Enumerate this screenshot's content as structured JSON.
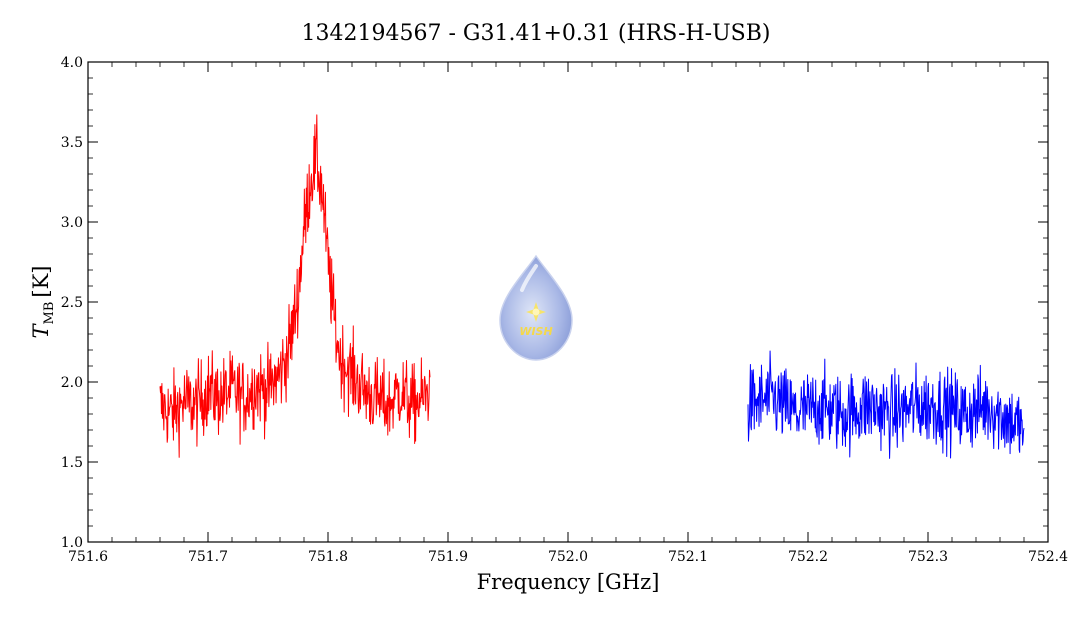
{
  "chart_data": {
    "type": "line",
    "title": "1342194567 - G31.41+0.31 (HRS-H-USB)",
    "xlabel": "Frequency [GHz]",
    "ylabel_main": "T",
    "ylabel_sub": "MB",
    "ylabel_unit": "[K]",
    "xlim": [
      751.6,
      752.4
    ],
    "ylim": [
      1.0,
      4.0
    ],
    "xticks": [
      751.6,
      751.7,
      751.8,
      751.9,
      752.0,
      752.1,
      752.2,
      752.3,
      752.4
    ],
    "xtick_labels": [
      "751.6",
      "751.7",
      "751.8",
      "751.9",
      "752.0",
      "752.1",
      "752.2",
      "752.3",
      "752.4"
    ],
    "yticks": [
      1.0,
      1.5,
      2.0,
      2.5,
      3.0,
      3.5,
      4.0
    ],
    "ytick_labels": [
      "1.0",
      "1.5",
      "2.0",
      "2.5",
      "3.0",
      "3.5",
      "4.0"
    ],
    "grid": false,
    "logo_text": "WISH",
    "series": [
      {
        "color": "#ff0000",
        "x": [
          751.66,
          751.67,
          751.68,
          751.69,
          751.7,
          751.71,
          751.72,
          751.73,
          751.74,
          751.75,
          751.76,
          751.765,
          751.77,
          751.775,
          751.78,
          751.785,
          751.79,
          751.795,
          751.8,
          751.805,
          751.81,
          751.82,
          751.83,
          751.84,
          751.85,
          751.86,
          751.87,
          751.88,
          751.885
        ],
        "y": [
          1.85,
          1.8,
          1.88,
          1.85,
          1.95,
          1.9,
          1.95,
          1.9,
          1.98,
          1.95,
          2.05,
          2.15,
          2.3,
          2.55,
          2.95,
          3.25,
          3.4,
          3.2,
          2.75,
          2.4,
          2.15,
          2.05,
          1.95,
          1.9,
          1.85,
          1.95,
          1.85,
          1.9,
          1.95
        ],
        "noise_amplitude": 0.22,
        "min_observed": 1.22,
        "max_observed": 3.76
      },
      {
        "color": "#0000ff",
        "x": [
          752.15,
          752.17,
          752.19,
          752.21,
          752.23,
          752.25,
          752.27,
          752.29,
          752.31,
          752.33,
          752.35,
          752.37,
          752.38
        ],
        "y": [
          1.85,
          1.9,
          1.8,
          1.85,
          1.8,
          1.85,
          1.8,
          1.85,
          1.85,
          1.8,
          1.85,
          1.75,
          1.7
        ],
        "noise_amplitude": 0.22,
        "min_observed": 1.1,
        "max_observed": 2.46
      }
    ]
  }
}
